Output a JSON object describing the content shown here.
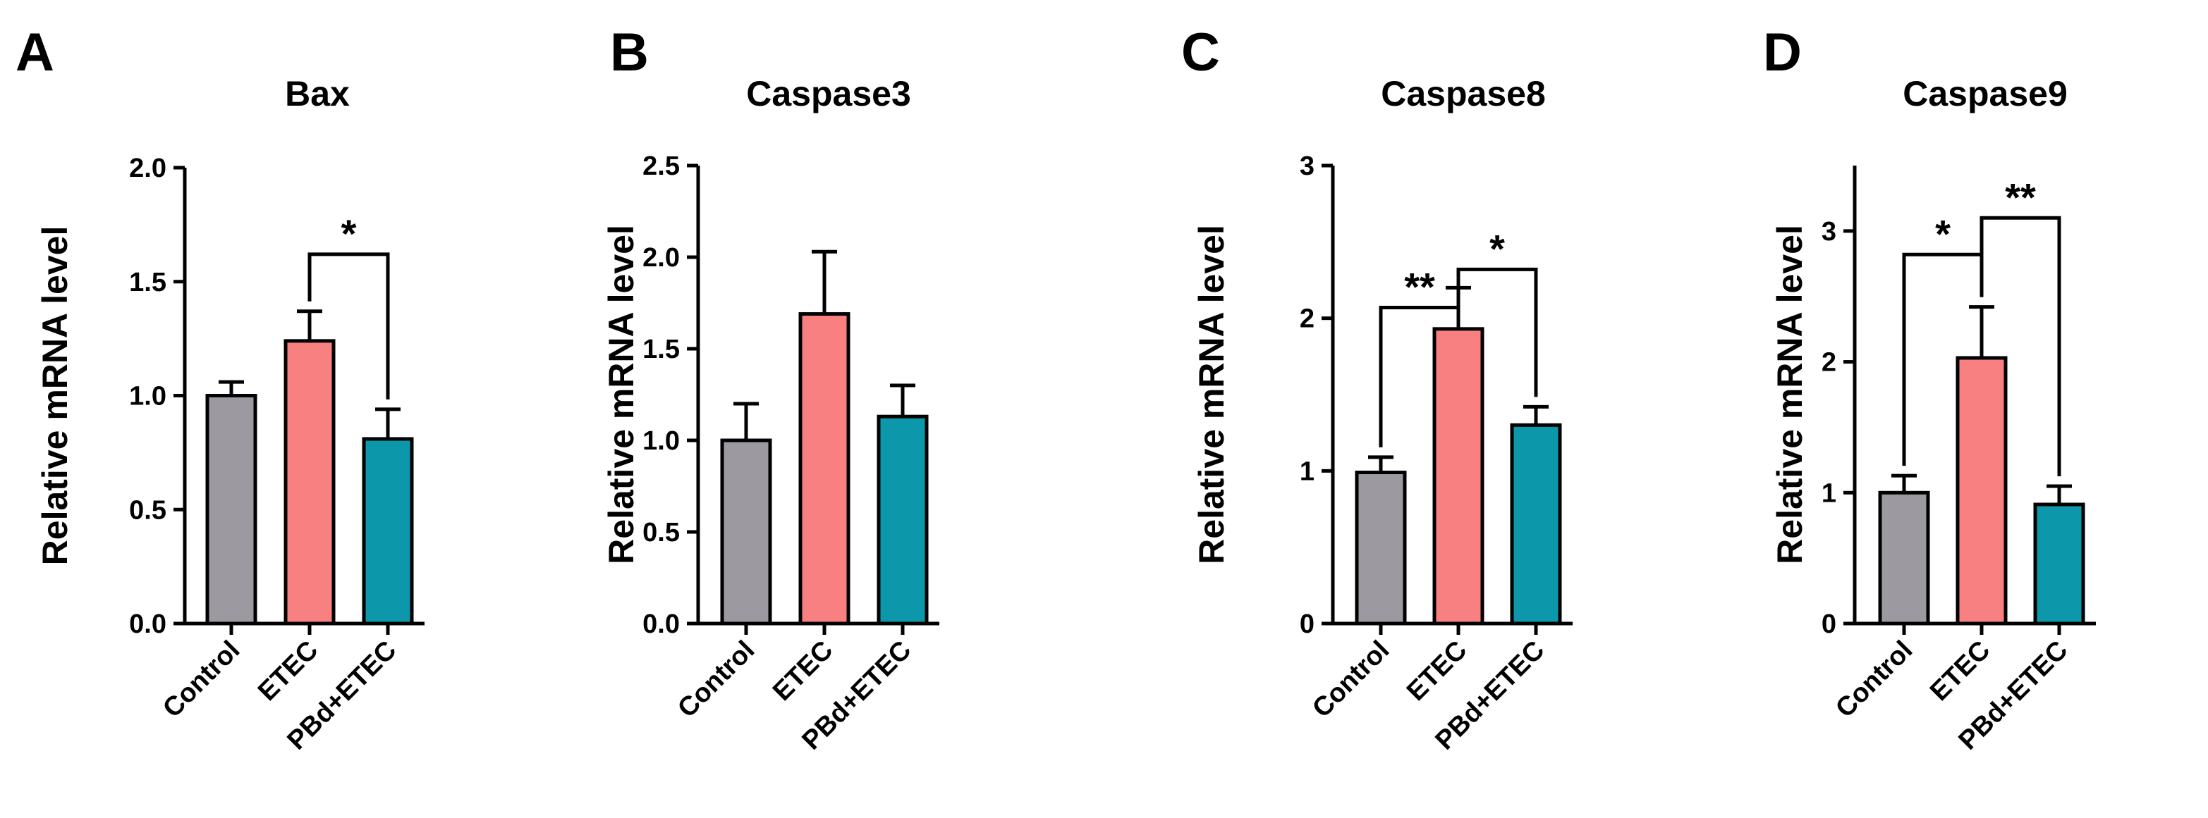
{
  "chart_data": [
    {
      "panel": "A",
      "type": "bar",
      "title": "Bax",
      "ylabel": "Relative mRNA level",
      "categories": [
        "Control",
        "ETEC",
        "PBd+ETEC"
      ],
      "values": [
        1.0,
        1.24,
        0.81
      ],
      "errors": [
        0.06,
        0.13,
        0.13
      ],
      "colors": [
        "#9c9aa0",
        "#f98080",
        "#0d97ab"
      ],
      "ylim": [
        0,
        2.0
      ],
      "yticks": [
        "0.0",
        "0.5",
        "1.0",
        "1.5",
        "2.0"
      ],
      "ytick_values": [
        0,
        0.5,
        1.0,
        1.5,
        2.0
      ],
      "significance": [
        {
          "from": 1,
          "to": 2,
          "label": "*",
          "y": 1.62
        }
      ]
    },
    {
      "panel": "B",
      "type": "bar",
      "title": "Caspase3",
      "ylabel": "Relative mRNA level",
      "categories": [
        "Control",
        "ETEC",
        "PBd+ETEC"
      ],
      "values": [
        1.0,
        1.69,
        1.13
      ],
      "errors": [
        0.2,
        0.34,
        0.17
      ],
      "colors": [
        "#9c9aa0",
        "#f98080",
        "#0d97ab"
      ],
      "ylim": [
        0,
        2.5
      ],
      "yticks": [
        "0.0",
        "0.5",
        "1.0",
        "1.5",
        "2.0",
        "2.5"
      ],
      "ytick_values": [
        0,
        0.5,
        1.0,
        1.5,
        2.0,
        2.5
      ],
      "significance": []
    },
    {
      "panel": "C",
      "type": "bar",
      "title": "Caspase8",
      "ylabel": "Relative mRNA level",
      "categories": [
        "Control",
        "ETEC",
        "PBd+ETEC"
      ],
      "values": [
        0.99,
        1.93,
        1.3
      ],
      "errors": [
        0.1,
        0.27,
        0.12
      ],
      "colors": [
        "#9c9aa0",
        "#f98080",
        "#0d97ab"
      ],
      "ylim": [
        0,
        3
      ],
      "yticks": [
        "0",
        "1",
        "2",
        "3"
      ],
      "ytick_values": [
        0,
        1,
        2,
        3
      ],
      "significance": [
        {
          "from": 0,
          "to": 1,
          "label": "**",
          "y": 2.07
        },
        {
          "from": 1,
          "to": 2,
          "label": "*",
          "y": 2.32
        }
      ]
    },
    {
      "panel": "D",
      "type": "bar",
      "title": "Caspase9",
      "ylabel": "Relative mRNA level",
      "categories": [
        "Control",
        "ETEC",
        "PBd+ETEC"
      ],
      "values": [
        1.0,
        2.03,
        0.91
      ],
      "errors": [
        0.13,
        0.39,
        0.14
      ],
      "colors": [
        "#9c9aa0",
        "#f98080",
        "#0d97ab"
      ],
      "ylim": [
        0,
        3.5
      ],
      "yticks": [
        "0",
        "1",
        "2",
        "3"
      ],
      "ytick_values": [
        0,
        1,
        2,
        3
      ],
      "significance": [
        {
          "from": 0,
          "to": 1,
          "label": "*",
          "y": 2.82
        },
        {
          "from": 1,
          "to": 2,
          "label": "**",
          "y": 3.1
        }
      ]
    }
  ]
}
